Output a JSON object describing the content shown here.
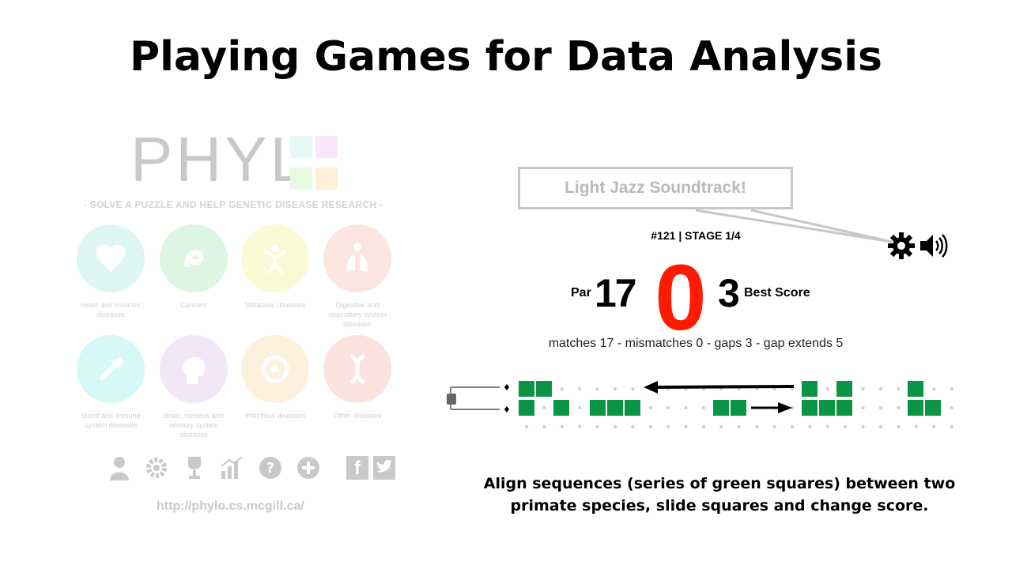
{
  "slide": {
    "title": "Playing Games for Data Analysis"
  },
  "phylo": {
    "logo_text": "PHYL",
    "tagline": "- SOLVE A PUZZLE AND HELP GENETIC DISEASE RESEARCH -",
    "categories": [
      {
        "label": "Heart and muscles diseases",
        "icon": "heart-icon",
        "color": "#b5ede6"
      },
      {
        "label": "Cancers",
        "icon": "cancer-ribbon-icon",
        "color": "#b5ecc2"
      },
      {
        "label": "Metabolic diseases",
        "icon": "person-icon",
        "color": "#f4f4a3"
      },
      {
        "label": "Digestive and respiratory system diseases",
        "icon": "lungs-icon",
        "color": "#f8c6b9"
      },
      {
        "label": "Blood and immune system diseases",
        "icon": "syringe-icon",
        "color": "#a6f0ee"
      },
      {
        "label": "Brain, nervous and sensory system diseases",
        "icon": "brain-icon",
        "color": "#e3c9f3"
      },
      {
        "label": "Infectious diseases",
        "icon": "biohazard-icon",
        "color": "#fbe2b8"
      },
      {
        "label": "Other diseases",
        "icon": "dna-icon",
        "color": "#f8c3b8"
      }
    ],
    "toolbar_icons": [
      "user-icon",
      "gear-icon",
      "trophy-icon",
      "stats-icon",
      "help-icon",
      "add-icon"
    ],
    "social_icons": [
      "facebook-icon",
      "twitter-icon"
    ],
    "url": "http://phylo.cs.mcgill.ca/"
  },
  "game": {
    "callout": "Light Jazz Soundtrack!",
    "stage": "#121 | STAGE 1/4",
    "par_label": "Par",
    "par_value": "17",
    "score": "0",
    "best_value": "3",
    "best_label": "Best Score",
    "stats": "matches 17 - mismatches 0 - gaps 3 - gap extends 5",
    "square_color": "#0b9444"
  },
  "caption": {
    "line1": "Align sequences (series of green squares) between two",
    "line2": "primate species, slide squares and change score."
  }
}
